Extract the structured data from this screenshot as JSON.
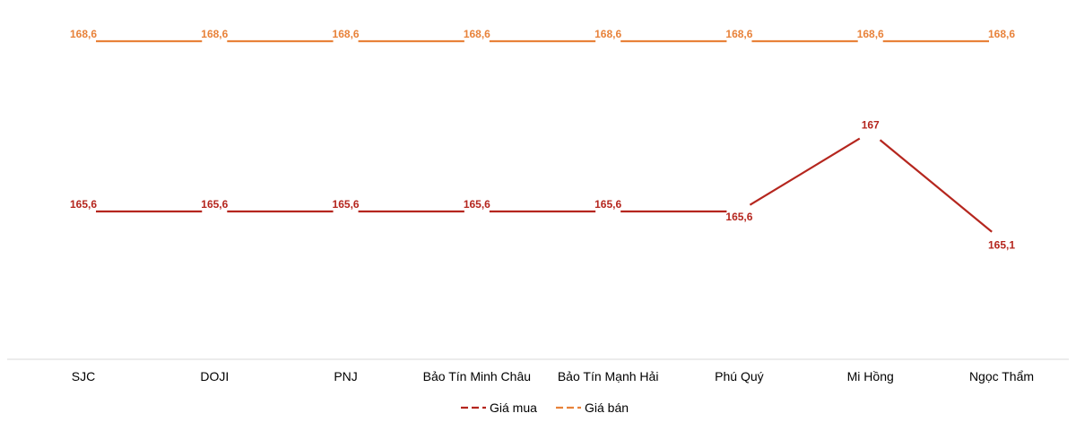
{
  "chart_data": {
    "type": "line",
    "title": "",
    "xlabel": "",
    "ylabel": "",
    "categories": [
      "SJC",
      "DOJI",
      "PNJ",
      "Bảo Tín Minh Châu",
      "Bảo Tín Mạnh Hải",
      "Phú Quý",
      "Mi Hồng",
      "Ngọc Thẩm"
    ],
    "series": [
      {
        "name": "Giá mua",
        "color": "#b5261e",
        "values": [
          165.6,
          165.6,
          165.6,
          165.6,
          165.6,
          165.6,
          167,
          165.1
        ],
        "labels": [
          "165,6",
          "165,6",
          "165,6",
          "165,6",
          "165,6",
          "165,6",
          "167",
          "165,1"
        ]
      },
      {
        "name": "Giá bán",
        "color": "#e8823a",
        "values": [
          168.6,
          168.6,
          168.6,
          168.6,
          168.6,
          168.6,
          168.6,
          168.6
        ],
        "labels": [
          "168,6",
          "168,6",
          "168,6",
          "168,6",
          "168,6",
          "168,6",
          "168,6",
          "168,6"
        ]
      }
    ],
    "ylim": [
      163,
      169.6
    ],
    "grid": false,
    "legend": "bottom"
  }
}
